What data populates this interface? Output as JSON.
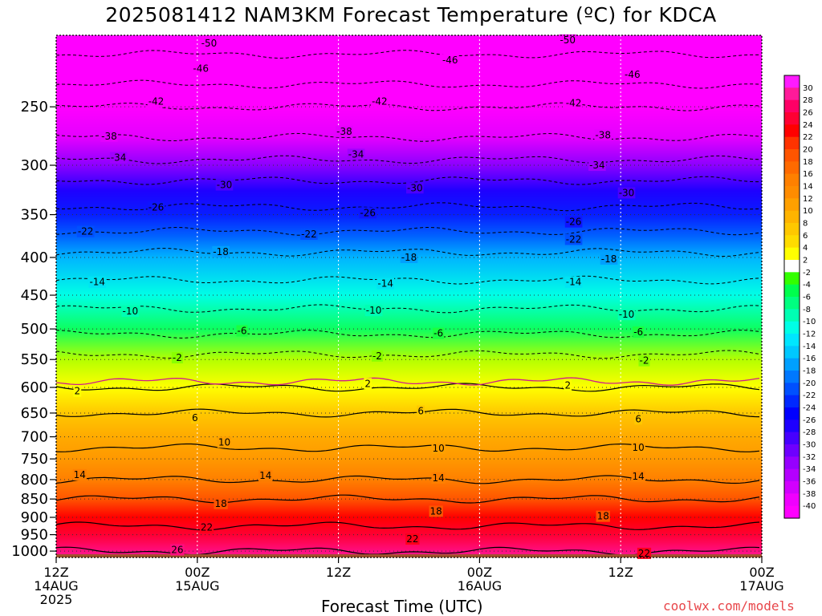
{
  "title": "2025081412 NAM3KM Forecast Temperature (ºC) for KDCA",
  "credit": "coolwx.com/models",
  "chart_data": {
    "type": "heatmap",
    "title": "2025081412 NAM3KM Forecast Temperature (ºC) for KDCA",
    "xlabel": "Forecast Time (UTC)",
    "ylabel": "",
    "x_ticks": [
      {
        "hour": 0,
        "lines": [
          "12Z",
          "14AUG",
          "2025"
        ]
      },
      {
        "hour": 12,
        "lines": [
          "00Z",
          "15AUG"
        ]
      },
      {
        "hour": 24,
        "lines": [
          "12Z"
        ]
      },
      {
        "hour": 36,
        "lines": [
          "00Z",
          "16AUG"
        ]
      },
      {
        "hour": 48,
        "lines": [
          "12Z"
        ]
      },
      {
        "hour": 60,
        "lines": [
          "00Z",
          "17AUG"
        ]
      }
    ],
    "xlim_hours": [
      0,
      60
    ],
    "y_ticks": [
      250,
      300,
      350,
      400,
      450,
      500,
      550,
      600,
      650,
      700,
      750,
      800,
      850,
      900,
      950,
      1000
    ],
    "ylim_hpa": [
      200,
      1020
    ],
    "y_scale": "log",
    "ground_pressure_hpa": 1010,
    "profile": [
      {
        "p": 200,
        "t": -52
      },
      {
        "p": 225,
        "t": -48
      },
      {
        "p": 250,
        "t": -42
      },
      {
        "p": 275,
        "t": -38
      },
      {
        "p": 300,
        "t": -33
      },
      {
        "p": 325,
        "t": -28
      },
      {
        "p": 350,
        "t": -25
      },
      {
        "p": 375,
        "t": -21
      },
      {
        "p": 400,
        "t": -17
      },
      {
        "p": 450,
        "t": -12
      },
      {
        "p": 500,
        "t": -7
      },
      {
        "p": 550,
        "t": -1
      },
      {
        "p": 600,
        "t": 2
      },
      {
        "p": 650,
        "t": 6
      },
      {
        "p": 700,
        "t": 9
      },
      {
        "p": 750,
        "t": 11
      },
      {
        "p": 800,
        "t": 14
      },
      {
        "p": 850,
        "t": 18
      },
      {
        "p": 900,
        "t": 21
      },
      {
        "p": 950,
        "t": 23
      },
      {
        "p": 1000,
        "t": 26
      },
      {
        "p": 1020,
        "t": 27
      }
    ],
    "contour_labels": [
      {
        "value": "-50",
        "hour": 13.0,
        "p": 205
      },
      {
        "value": "-50",
        "hour": 43.5,
        "p": 203
      },
      {
        "value": "-46",
        "hour": 12.3,
        "p": 222
      },
      {
        "value": "-46",
        "hour": 33.5,
        "p": 216
      },
      {
        "value": "-46",
        "hour": 49.0,
        "p": 226
      },
      {
        "value": "-42",
        "hour": 8.5,
        "p": 246
      },
      {
        "value": "-42",
        "hour": 27.5,
        "p": 246
      },
      {
        "value": "-42",
        "hour": 44.0,
        "p": 247
      },
      {
        "value": "-38",
        "hour": 4.5,
        "p": 274
      },
      {
        "value": "-38",
        "hour": 24.5,
        "p": 270
      },
      {
        "value": "-38",
        "hour": 46.5,
        "p": 273
      },
      {
        "value": "-34",
        "hour": 5.3,
        "p": 293
      },
      {
        "value": "-34",
        "hour": 25.5,
        "p": 290
      },
      {
        "value": "-34",
        "hour": 46.0,
        "p": 300
      },
      {
        "value": "-30",
        "hour": 14.3,
        "p": 319
      },
      {
        "value": "-30",
        "hour": 30.5,
        "p": 322
      },
      {
        "value": "-30",
        "hour": 48.5,
        "p": 327
      },
      {
        "value": "-26",
        "hour": 8.5,
        "p": 342
      },
      {
        "value": "-26",
        "hour": 26.5,
        "p": 348
      },
      {
        "value": "-26",
        "hour": 44.0,
        "p": 358
      },
      {
        "value": "-22",
        "hour": 2.5,
        "p": 369
      },
      {
        "value": "-22",
        "hour": 21.5,
        "p": 372
      },
      {
        "value": "-22",
        "hour": 44.0,
        "p": 378
      },
      {
        "value": "-18",
        "hour": 14.0,
        "p": 393
      },
      {
        "value": "-18",
        "hour": 30.0,
        "p": 400
      },
      {
        "value": "-18",
        "hour": 47.0,
        "p": 402
      },
      {
        "value": "-14",
        "hour": 3.5,
        "p": 432
      },
      {
        "value": "-14",
        "hour": 28.0,
        "p": 434
      },
      {
        "value": "-14",
        "hour": 44.0,
        "p": 432
      },
      {
        "value": "-10",
        "hour": 6.3,
        "p": 473
      },
      {
        "value": "-10",
        "hour": 27.0,
        "p": 472
      },
      {
        "value": "-10",
        "hour": 48.5,
        "p": 478
      },
      {
        "value": "-6",
        "hour": 15.8,
        "p": 503
      },
      {
        "value": "-6",
        "hour": 32.5,
        "p": 507
      },
      {
        "value": "-6",
        "hour": 49.5,
        "p": 505
      },
      {
        "value": "-2",
        "hour": 10.3,
        "p": 547
      },
      {
        "value": "-2",
        "hour": 27.3,
        "p": 544
      },
      {
        "value": "-2",
        "hour": 50.0,
        "p": 552
      },
      {
        "value": "2",
        "hour": 1.8,
        "p": 607
      },
      {
        "value": "2",
        "hour": 26.5,
        "p": 593
      },
      {
        "value": "2",
        "hour": 43.5,
        "p": 596
      },
      {
        "value": "6",
        "hour": 11.8,
        "p": 660
      },
      {
        "value": "6",
        "hour": 31.0,
        "p": 646
      },
      {
        "value": "6",
        "hour": 49.5,
        "p": 662
      },
      {
        "value": "10",
        "hour": 14.3,
        "p": 712
      },
      {
        "value": "10",
        "hour": 32.5,
        "p": 726
      },
      {
        "value": "10",
        "hour": 49.5,
        "p": 724
      },
      {
        "value": "14",
        "hour": 2.0,
        "p": 788
      },
      {
        "value": "14",
        "hour": 17.8,
        "p": 790
      },
      {
        "value": "14",
        "hour": 32.5,
        "p": 796
      },
      {
        "value": "14",
        "hour": 49.5,
        "p": 792
      },
      {
        "value": "18",
        "hour": 14.0,
        "p": 862
      },
      {
        "value": "18",
        "hour": 32.3,
        "p": 883
      },
      {
        "value": "18",
        "hour": 46.5,
        "p": 897
      },
      {
        "value": "22",
        "hour": 12.8,
        "p": 929
      },
      {
        "value": "22",
        "hour": 30.3,
        "p": 963
      },
      {
        "value": "22",
        "hour": 50.0,
        "p": 1007
      },
      {
        "value": "26",
        "hour": 10.3,
        "p": 996
      }
    ],
    "colorbar": {
      "labels": [
        "30",
        "28",
        "26",
        "24",
        "22",
        "20",
        "18",
        "16",
        "14",
        "12",
        "10",
        "8",
        "6",
        "4",
        "2",
        "-2",
        "-4",
        "-6",
        "-8",
        "-10",
        "-12",
        "-14",
        "-16",
        "-18",
        "-20",
        "-22",
        "-24",
        "-26",
        "-28",
        "-30",
        "-32",
        "-34",
        "-36",
        "-38",
        "-40"
      ],
      "colors": [
        "#ff1aff",
        "#ff1a99",
        "#ff0066",
        "#ff0033",
        "#ff0000",
        "#ff3300",
        "#ff5500",
        "#ff6a00",
        "#ff8000",
        "#ff8c00",
        "#ffa000",
        "#ffb400",
        "#ffc800",
        "#ffdc00",
        "#ffff00",
        "#ffffff",
        "#33ff00",
        "#00ff4d",
        "#00ff80",
        "#00ffb3",
        "#00ffe6",
        "#00e6ff",
        "#00c8ff",
        "#00a0ff",
        "#0078ff",
        "#0050ff",
        "#0028ff",
        "#0000ff",
        "#1e00ff",
        "#4600ff",
        "#6e00ff",
        "#9600ff",
        "#b400ff",
        "#d200ff",
        "#f000ff",
        "#ff00ff"
      ]
    }
  }
}
